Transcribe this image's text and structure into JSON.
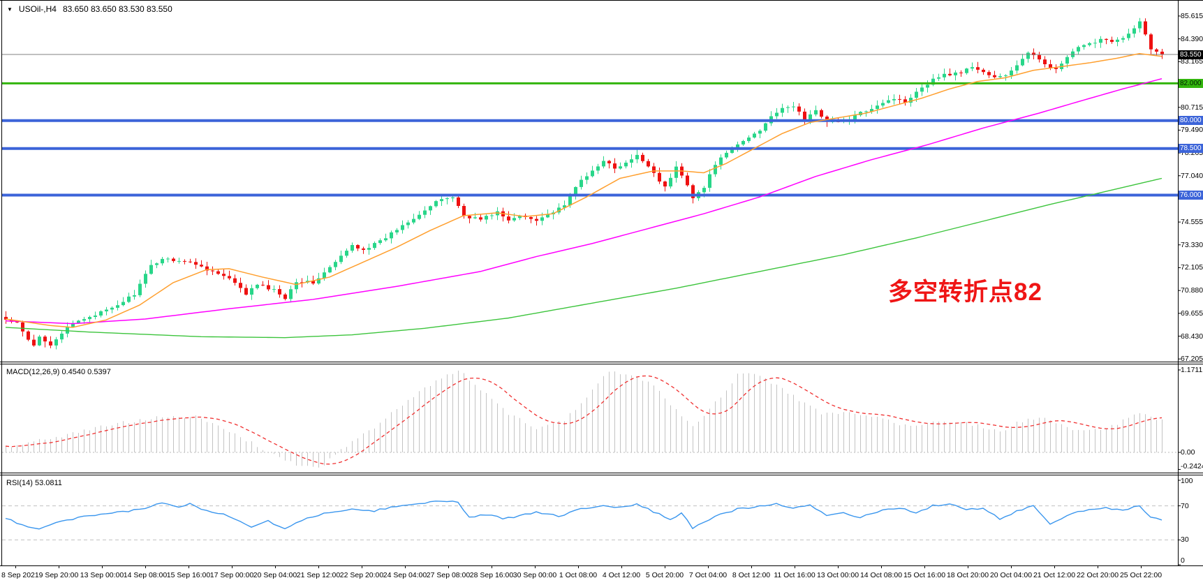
{
  "header": {
    "collapse_icon": "▼",
    "symbol_period": "USOil-,H4",
    "ohlc": "83.650 83.650 83.530 83.550"
  },
  "annotation": {
    "text": "多空转折点82",
    "color": "#ef1515"
  },
  "macd_panel": {
    "label_full": "MACD(12,26,9) 0.4540 0.5397"
  },
  "rsi_panel": {
    "label_full": "RSI(14) 53.0811"
  },
  "colors": {
    "bull": "#28d689",
    "bear": "#ee1111",
    "ma_fast": "#ff9f2e",
    "ma_mid": "#ff00ff",
    "ma_slow": "#3cc43c",
    "current_line": "#808080",
    "hline_green": "#33b50e",
    "hline_blue": "#3c64d9",
    "macd_bar": "#c3c3c3",
    "macd_signal": "#f03030",
    "macd_zero": "#b8b8b8",
    "rsi_line": "#3a96ee",
    "level_dash": "#c0c0c0",
    "frame": "#000000"
  },
  "chart_data": [
    {
      "type": "candlestick",
      "title": "USOil-,H4",
      "symbol": "USOil-",
      "timeframe": "H4",
      "ohlc_current": {
        "open": 83.65,
        "high": 83.65,
        "low": 83.53,
        "close": 83.55
      },
      "bars": 208,
      "ylim": [
        67.1,
        86.1
      ],
      "y_ticks": [
        85.615,
        84.39,
        83.165,
        80.715,
        79.49,
        78.265,
        77.04,
        74.555,
        73.33,
        72.105,
        70.88,
        69.655,
        68.43,
        67.205
      ],
      "hlines": [
        {
          "price": 83.55,
          "label": "83.550",
          "color": "#808080",
          "width": 1,
          "badge_bg": "#000000",
          "badge_fg": "#ffffff",
          "role": "current-price"
        },
        {
          "price": 82.0,
          "label": "82.000",
          "color": "#33b50e",
          "width": 3,
          "badge_bg": "#33b50e",
          "badge_fg": "#002200",
          "role": "resistance-support"
        },
        {
          "price": 80.0,
          "label": "80.000",
          "color": "#3c64d9",
          "width": 4,
          "badge_bg": "#3c64d9",
          "badge_fg": "#ffffff",
          "role": "support"
        },
        {
          "price": 78.5,
          "label": "78.500",
          "color": "#3c64d9",
          "width": 4,
          "badge_bg": "#3c64d9",
          "badge_fg": "#ffffff",
          "role": "support"
        },
        {
          "price": 76.0,
          "label": "76.000",
          "color": "#3c64d9",
          "width": 4,
          "badge_bg": "#3c64d9",
          "badge_fg": "#ffffff",
          "role": "support"
        }
      ],
      "close_waypoints": [
        [
          0,
          69.3
        ],
        [
          2,
          69.1
        ],
        [
          4,
          68.2
        ],
        [
          5,
          67.9
        ],
        [
          6,
          68.4
        ],
        [
          8,
          68.0
        ],
        [
          10,
          68.6
        ],
        [
          12,
          69.1
        ],
        [
          15,
          69.5
        ],
        [
          19,
          69.9
        ],
        [
          23,
          70.7
        ],
        [
          26,
          72.2
        ],
        [
          28,
          72.6
        ],
        [
          31,
          72.5
        ],
        [
          34,
          72.3
        ],
        [
          37,
          71.9
        ],
        [
          40,
          71.5
        ],
        [
          43,
          70.7
        ],
        [
          45,
          71.2
        ],
        [
          48,
          70.9
        ],
        [
          50,
          70.5
        ],
        [
          52,
          71.4
        ],
        [
          55,
          71.3
        ],
        [
          58,
          72.1
        ],
        [
          60,
          72.7
        ],
        [
          62,
          73.3
        ],
        [
          64,
          73.1
        ],
        [
          67,
          73.5
        ],
        [
          71,
          74.4
        ],
        [
          75,
          75.2
        ],
        [
          78,
          75.8
        ],
        [
          80,
          75.9
        ],
        [
          82,
          74.9
        ],
        [
          85,
          74.7
        ],
        [
          88,
          75.1
        ],
        [
          90,
          74.6
        ],
        [
          92,
          74.9
        ],
        [
          95,
          74.7
        ],
        [
          98,
          75.1
        ],
        [
          100,
          75.4
        ],
        [
          102,
          76.5
        ],
        [
          104,
          77.0
        ],
        [
          107,
          77.9
        ],
        [
          109,
          77.4
        ],
        [
          111,
          77.7
        ],
        [
          113,
          78.1
        ],
        [
          115,
          77.6
        ],
        [
          117,
          76.8
        ],
        [
          118,
          76.4
        ],
        [
          120,
          77.5
        ],
        [
          122,
          76.6
        ],
        [
          123,
          75.9
        ],
        [
          125,
          76.4
        ],
        [
          127,
          77.7
        ],
        [
          129,
          78.2
        ],
        [
          131,
          78.7
        ],
        [
          133,
          79.1
        ],
        [
          135,
          79.5
        ],
        [
          137,
          80.3
        ],
        [
          139,
          80.6
        ],
        [
          141,
          80.8
        ],
        [
          143,
          80.1
        ],
        [
          145,
          80.5
        ],
        [
          147,
          80.0
        ],
        [
          149,
          79.9
        ],
        [
          151,
          80.1
        ],
        [
          153,
          80.4
        ],
        [
          155,
          80.7
        ],
        [
          157,
          81.0
        ],
        [
          159,
          81.2
        ],
        [
          161,
          81.0
        ],
        [
          163,
          81.6
        ],
        [
          165,
          82.0
        ],
        [
          167,
          82.4
        ],
        [
          169,
          82.5
        ],
        [
          171,
          82.6
        ],
        [
          173,
          82.9
        ],
        [
          175,
          82.6
        ],
        [
          177,
          82.3
        ],
        [
          179,
          82.4
        ],
        [
          181,
          83.0
        ],
        [
          183,
          83.6
        ],
        [
          185,
          83.3
        ],
        [
          186,
          83.1
        ],
        [
          188,
          82.7
        ],
        [
          190,
          83.4
        ],
        [
          192,
          83.9
        ],
        [
          194,
          84.1
        ],
        [
          196,
          84.4
        ],
        [
          198,
          84.3
        ],
        [
          200,
          84.4
        ],
        [
          202,
          84.9
        ],
        [
          203,
          85.3
        ],
        [
          204,
          84.6
        ],
        [
          205,
          83.9
        ],
        [
          206,
          83.7
        ],
        [
          207,
          83.55
        ]
      ],
      "ma_fast_waypoints": [
        [
          0,
          69.35
        ],
        [
          8,
          69.0
        ],
        [
          12,
          68.9
        ],
        [
          18,
          69.3
        ],
        [
          24,
          70.1
        ],
        [
          30,
          71.3
        ],
        [
          36,
          72.0
        ],
        [
          40,
          72.05
        ],
        [
          46,
          71.6
        ],
        [
          52,
          71.2
        ],
        [
          58,
          71.6
        ],
        [
          64,
          72.4
        ],
        [
          70,
          73.2
        ],
        [
          76,
          74.1
        ],
        [
          82,
          74.9
        ],
        [
          88,
          75.05
        ],
        [
          93,
          74.85
        ],
        [
          98,
          75.0
        ],
        [
          104,
          75.9
        ],
        [
          110,
          76.9
        ],
        [
          116,
          77.3
        ],
        [
          121,
          77.3
        ],
        [
          125,
          77.2
        ],
        [
          129,
          77.7
        ],
        [
          134,
          78.5
        ],
        [
          139,
          79.3
        ],
        [
          144,
          79.9
        ],
        [
          149,
          80.15
        ],
        [
          154,
          80.4
        ],
        [
          159,
          80.8
        ],
        [
          164,
          81.2
        ],
        [
          169,
          81.7
        ],
        [
          174,
          82.1
        ],
        [
          179,
          82.3
        ],
        [
          184,
          82.7
        ],
        [
          189,
          82.9
        ],
        [
          194,
          83.1
        ],
        [
          199,
          83.35
        ],
        [
          203,
          83.6
        ],
        [
          207,
          83.45
        ]
      ],
      "ma_mid_waypoints": [
        [
          0,
          69.25
        ],
        [
          12,
          69.1
        ],
        [
          25,
          69.35
        ],
        [
          40,
          69.9
        ],
        [
          55,
          70.4
        ],
        [
          70,
          71.1
        ],
        [
          85,
          71.9
        ],
        [
          95,
          72.7
        ],
        [
          105,
          73.4
        ],
        [
          115,
          74.2
        ],
        [
          125,
          75.0
        ],
        [
          135,
          75.9
        ],
        [
          145,
          77.0
        ],
        [
          155,
          77.9
        ],
        [
          165,
          78.7
        ],
        [
          175,
          79.6
        ],
        [
          185,
          80.4
        ],
        [
          193,
          81.1
        ],
        [
          200,
          81.7
        ],
        [
          207,
          82.25
        ]
      ],
      "ma_slow_waypoints": [
        [
          0,
          68.9
        ],
        [
          15,
          68.65
        ],
        [
          35,
          68.4
        ],
        [
          50,
          68.35
        ],
        [
          62,
          68.5
        ],
        [
          75,
          68.85
        ],
        [
          90,
          69.4
        ],
        [
          105,
          70.2
        ],
        [
          120,
          71.0
        ],
        [
          135,
          71.9
        ],
        [
          150,
          72.8
        ],
        [
          163,
          73.7
        ],
        [
          175,
          74.6
        ],
        [
          187,
          75.5
        ],
        [
          197,
          76.2
        ],
        [
          207,
          76.9
        ]
      ],
      "x_ticks": [
        "8 Sep 2021",
        "9 Sep 20:00",
        "13 Sep 00:00",
        "14 Sep 08:00",
        "15 Sep 16:00",
        "17 Sep 00:00",
        "20 Sep 04:00",
        "21 Sep 12:00",
        "22 Sep 20:00",
        "24 Sep 04:00",
        "27 Sep 08:00",
        "28 Sep 16:00",
        "30 Sep 00:00",
        "1 Oct 08:00",
        "4 Oct 12:00",
        "5 Oct 20:00",
        "7 Oct 04:00",
        "8 Oct 12:00",
        "11 Oct 16:00",
        "13 Oct 00:00",
        "14 Oct 08:00",
        "15 Oct 16:00",
        "18 Oct 20:00",
        "20 Oct 04:00",
        "21 Oct 12:00",
        "22 Oct 20:00",
        "25 Oct 22:00"
      ]
    },
    {
      "type": "macd_histogram",
      "label": "MACD(12,26,9)",
      "main_value": 0.454,
      "signal_value": 0.5397,
      "ylim": [
        -0.29,
        1.25
      ],
      "y_ticks": [
        {
          "label": "1.1711",
          "value": 1.1711
        },
        {
          "label": "0.00",
          "value": 0
        },
        {
          "label": "-0.2424",
          "value": -0.2424
        }
      ],
      "hist_waypoints": [
        [
          0,
          0.08
        ],
        [
          8,
          0.2
        ],
        [
          18,
          0.38
        ],
        [
          28,
          0.52
        ],
        [
          34,
          0.5
        ],
        [
          40,
          0.3
        ],
        [
          46,
          0.05
        ],
        [
          52,
          -0.18
        ],
        [
          56,
          -0.24
        ],
        [
          60,
          0.05
        ],
        [
          66,
          0.35
        ],
        [
          72,
          0.75
        ],
        [
          78,
          1.05
        ],
        [
          81,
          1.17
        ],
        [
          85,
          0.9
        ],
        [
          90,
          0.55
        ],
        [
          95,
          0.35
        ],
        [
          100,
          0.45
        ],
        [
          104,
          0.8
        ],
        [
          108,
          1.17
        ],
        [
          112,
          1.1
        ],
        [
          116,
          0.95
        ],
        [
          120,
          0.6
        ],
        [
          123,
          0.38
        ],
        [
          127,
          0.7
        ],
        [
          131,
          1.1
        ],
        [
          134,
          1.12
        ],
        [
          138,
          0.95
        ],
        [
          142,
          0.75
        ],
        [
          146,
          0.55
        ],
        [
          151,
          0.55
        ],
        [
          156,
          0.5
        ],
        [
          161,
          0.38
        ],
        [
          166,
          0.42
        ],
        [
          170,
          0.45
        ],
        [
          174,
          0.38
        ],
        [
          178,
          0.3
        ],
        [
          182,
          0.45
        ],
        [
          185,
          0.5
        ],
        [
          189,
          0.38
        ],
        [
          193,
          0.3
        ],
        [
          197,
          0.32
        ],
        [
          201,
          0.5
        ],
        [
          204,
          0.55
        ],
        [
          207,
          0.454
        ]
      ],
      "signal_period": 9
    },
    {
      "type": "line",
      "label": "RSI(14)",
      "current_value": 53.0811,
      "levels": [
        70,
        30
      ],
      "ylim": [
        0,
        100
      ],
      "y_ticks": [
        {
          "label": "100",
          "value": 100
        },
        {
          "label": "70",
          "value": 70
        },
        {
          "label": "30",
          "value": 30
        },
        {
          "label": "0",
          "value": 0
        }
      ],
      "waypoints": [
        [
          0,
          55
        ],
        [
          3,
          48
        ],
        [
          6,
          42
        ],
        [
          10,
          52
        ],
        [
          14,
          57
        ],
        [
          18,
          60
        ],
        [
          24,
          66
        ],
        [
          28,
          73
        ],
        [
          31,
          69
        ],
        [
          33,
          72
        ],
        [
          36,
          64
        ],
        [
          39,
          61
        ],
        [
          44,
          46
        ],
        [
          47,
          52
        ],
        [
          50,
          44
        ],
        [
          54,
          56
        ],
        [
          58,
          62
        ],
        [
          62,
          67
        ],
        [
          66,
          64
        ],
        [
          70,
          70
        ],
        [
          74,
          73
        ],
        [
          78,
          76
        ],
        [
          81,
          74
        ],
        [
          83,
          57
        ],
        [
          86,
          60
        ],
        [
          89,
          55
        ],
        [
          92,
          58
        ],
        [
          95,
          63
        ],
        [
          99,
          58
        ],
        [
          103,
          66
        ],
        [
          107,
          71
        ],
        [
          110,
          68
        ],
        [
          113,
          72
        ],
        [
          117,
          60
        ],
        [
          119,
          53
        ],
        [
          121,
          62
        ],
        [
          123,
          44
        ],
        [
          125,
          50
        ],
        [
          127,
          58
        ],
        [
          131,
          66
        ],
        [
          135,
          70
        ],
        [
          138,
          73
        ],
        [
          141,
          67
        ],
        [
          144,
          71
        ],
        [
          147,
          59
        ],
        [
          150,
          62
        ],
        [
          153,
          56
        ],
        [
          157,
          65
        ],
        [
          160,
          68
        ],
        [
          163,
          62
        ],
        [
          166,
          70
        ],
        [
          169,
          72
        ],
        [
          172,
          65
        ],
        [
          175,
          68
        ],
        [
          178,
          55
        ],
        [
          182,
          66
        ],
        [
          184,
          70
        ],
        [
          187,
          48
        ],
        [
          191,
          62
        ],
        [
          194,
          66
        ],
        [
          197,
          68
        ],
        [
          200,
          64
        ],
        [
          203,
          70
        ],
        [
          205,
          56
        ],
        [
          207,
          53.08
        ]
      ]
    }
  ]
}
